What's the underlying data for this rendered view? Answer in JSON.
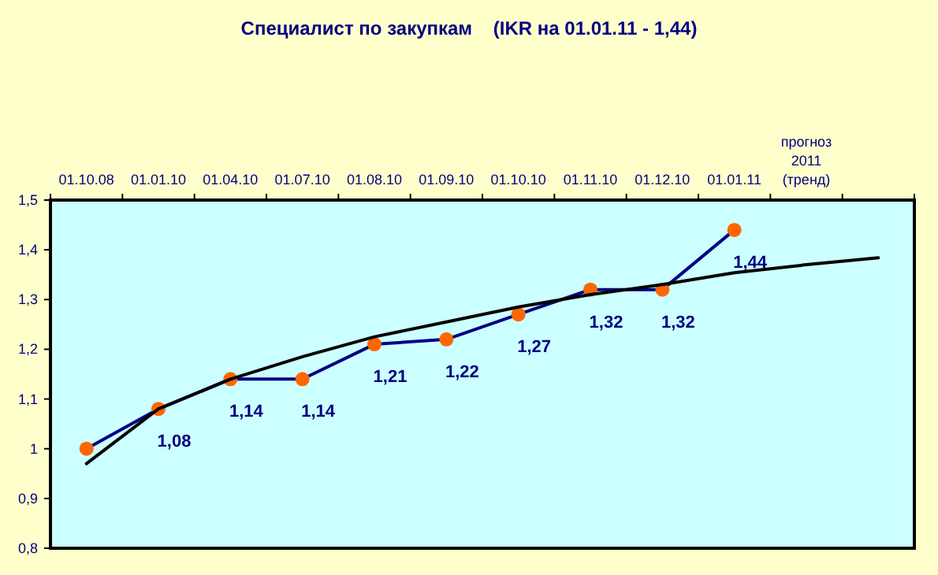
{
  "chart_data": {
    "type": "line",
    "title": "Специалист по закупкам    (IKR на 01.01.11 - 1,44)",
    "categories": [
      "01.10.08",
      "01.01.10",
      "01.04.10",
      "01.07.10",
      "01.08.10",
      "01.09.10",
      "01.10.10",
      "01.11.10",
      "01.12.10",
      "01.01.11",
      "прогноз\n2011\n(тренд)",
      null
    ],
    "series": [
      {
        "color": "#000080",
        "marker": "none",
        "values": [
          1.0,
          1.08,
          1.14,
          1.14,
          1.21,
          1.22,
          1.27,
          1.32,
          1.32,
          1.44,
          null,
          null
        ]
      },
      {
        "type": "scatter",
        "color": "#ff6600",
        "marker": "circle",
        "values": [
          1.0,
          1.08,
          1.14,
          1.14,
          1.21,
          1.22,
          1.27,
          1.32,
          1.32,
          1.44,
          null,
          null
        ],
        "value_labels": [
          null,
          "1,08",
          "1,14",
          "1,14",
          "1,21",
          "1,22",
          "1,27",
          "1,32",
          "1,32",
          "1,44",
          null,
          null
        ]
      },
      {
        "type": "line",
        "color": "#000000",
        "marker": "none",
        "values": [
          0.97,
          1.08,
          1.14,
          1.185,
          1.225,
          1.255,
          1.285,
          1.31,
          1.33,
          1.354,
          1.37,
          1.384
        ]
      }
    ],
    "ylim": [
      0.8,
      1.5
    ],
    "yticks": [
      {
        "value": 0.8,
        "label": "0,8"
      },
      {
        "value": 0.9,
        "label": "0,9"
      },
      {
        "value": 1,
        "label": "1"
      },
      {
        "value": 1.1,
        "label": "1,1"
      },
      {
        "value": 1.2,
        "label": "1,2"
      },
      {
        "value": 1.3,
        "label": "1,3"
      },
      {
        "value": 1.4,
        "label": "1,4"
      },
      {
        "value": 1.5,
        "label": "1,5"
      }
    ],
    "grid": false
  }
}
